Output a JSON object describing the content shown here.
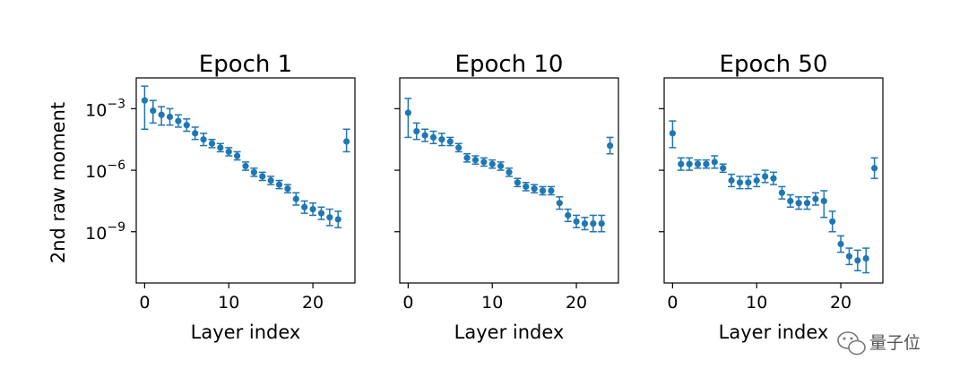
{
  "chart_data": [
    {
      "type": "scatter",
      "title": "Epoch 1",
      "xlabel": "Layer index",
      "ylabel": "2nd raw moment",
      "yscale": "log",
      "xlim": [
        -1,
        25
      ],
      "ylim_log10": [
        -11.5,
        -1.5
      ],
      "xticks": [
        0,
        10,
        20
      ],
      "yticks": [
        -3,
        -6,
        -9
      ],
      "marker_color": "#1f77b4",
      "error_bars": true,
      "series": [
        {
          "x": [
            0,
            1,
            2,
            3,
            4,
            5,
            6,
            7,
            8,
            9,
            10,
            11,
            12,
            13,
            14,
            15,
            16,
            17,
            18,
            19,
            20,
            21,
            22,
            23,
            24
          ],
          "log10_y": [
            -2.6,
            -3.1,
            -3.3,
            -3.4,
            -3.6,
            -3.8,
            -4.2,
            -4.5,
            -4.7,
            -4.9,
            -5.1,
            -5.3,
            -5.8,
            -6.1,
            -6.3,
            -6.5,
            -6.7,
            -6.9,
            -7.4,
            -7.8,
            -7.9,
            -8.1,
            -8.3,
            -8.4,
            -4.6
          ],
          "log10_err_low": [
            1.4,
            0.6,
            0.5,
            0.4,
            0.3,
            0.3,
            0.3,
            0.3,
            0.2,
            0.2,
            0.2,
            0.2,
            0.2,
            0.2,
            0.2,
            0.2,
            0.2,
            0.2,
            0.3,
            0.3,
            0.3,
            0.3,
            0.4,
            0.4,
            0.5
          ],
          "log10_err_high": [
            0.7,
            0.5,
            0.4,
            0.4,
            0.3,
            0.3,
            0.3,
            0.3,
            0.2,
            0.2,
            0.2,
            0.2,
            0.2,
            0.2,
            0.2,
            0.2,
            0.2,
            0.2,
            0.3,
            0.3,
            0.3,
            0.3,
            0.4,
            0.4,
            0.6
          ]
        }
      ]
    },
    {
      "type": "scatter",
      "title": "Epoch 10",
      "xlabel": "Layer index",
      "yscale": "log",
      "xlim": [
        -1,
        25
      ],
      "ylim_log10": [
        -11.5,
        -1.5
      ],
      "xticks": [
        0,
        10,
        20
      ],
      "marker_color": "#1f77b4",
      "error_bars": true,
      "series": [
        {
          "x": [
            0,
            1,
            2,
            3,
            4,
            5,
            6,
            7,
            8,
            9,
            10,
            11,
            12,
            13,
            14,
            15,
            16,
            17,
            18,
            19,
            20,
            21,
            22,
            23,
            24
          ],
          "log10_y": [
            -3.2,
            -4.1,
            -4.3,
            -4.4,
            -4.5,
            -4.6,
            -4.9,
            -5.4,
            -5.5,
            -5.6,
            -5.7,
            -5.8,
            -6.1,
            -6.6,
            -6.8,
            -6.9,
            -7.0,
            -7.0,
            -7.6,
            -8.2,
            -8.5,
            -8.6,
            -8.6,
            -8.6,
            -4.8
          ],
          "log10_err_low": [
            1.2,
            0.4,
            0.3,
            0.3,
            0.3,
            0.2,
            0.2,
            0.2,
            0.2,
            0.2,
            0.2,
            0.2,
            0.2,
            0.2,
            0.2,
            0.2,
            0.2,
            0.2,
            0.3,
            0.3,
            0.3,
            0.3,
            0.4,
            0.4,
            0.4
          ],
          "log10_err_high": [
            0.7,
            0.4,
            0.3,
            0.3,
            0.3,
            0.2,
            0.2,
            0.2,
            0.2,
            0.2,
            0.2,
            0.2,
            0.2,
            0.2,
            0.2,
            0.2,
            0.2,
            0.2,
            0.3,
            0.3,
            0.3,
            0.3,
            0.4,
            0.4,
            0.4
          ]
        }
      ]
    },
    {
      "type": "scatter",
      "title": "Epoch 50",
      "xlabel": "Layer index",
      "yscale": "log",
      "xlim": [
        -1,
        25
      ],
      "ylim_log10": [
        -11.5,
        -1.5
      ],
      "xticks": [
        0,
        10,
        20
      ],
      "marker_color": "#1f77b4",
      "error_bars": true,
      "series": [
        {
          "x": [
            0,
            1,
            2,
            3,
            4,
            5,
            6,
            7,
            8,
            9,
            10,
            11,
            12,
            13,
            14,
            15,
            16,
            17,
            18,
            19,
            20,
            21,
            22,
            23,
            24
          ],
          "log10_y": [
            -4.2,
            -5.7,
            -5.7,
            -5.7,
            -5.7,
            -5.6,
            -5.9,
            -6.5,
            -6.6,
            -6.6,
            -6.5,
            -6.3,
            -6.4,
            -7.1,
            -7.5,
            -7.6,
            -7.6,
            -7.4,
            -7.5,
            -8.5,
            -9.6,
            -10.2,
            -10.4,
            -10.3,
            -5.9
          ],
          "log10_err_low": [
            0.7,
            0.3,
            0.3,
            0.2,
            0.2,
            0.3,
            0.2,
            0.3,
            0.3,
            0.3,
            0.3,
            0.3,
            0.3,
            0.3,
            0.3,
            0.3,
            0.3,
            0.3,
            0.8,
            0.5,
            0.4,
            0.4,
            0.5,
            0.7,
            0.5
          ],
          "log10_err_high": [
            0.6,
            0.3,
            0.3,
            0.2,
            0.2,
            0.3,
            0.2,
            0.3,
            0.3,
            0.3,
            0.3,
            0.3,
            0.3,
            0.3,
            0.3,
            0.3,
            0.3,
            0.3,
            0.5,
            0.5,
            0.4,
            0.4,
            0.5,
            0.5,
            0.5
          ]
        }
      ]
    }
  ],
  "watermark": {
    "text": "量子位",
    "icon": "wechat-icon"
  }
}
